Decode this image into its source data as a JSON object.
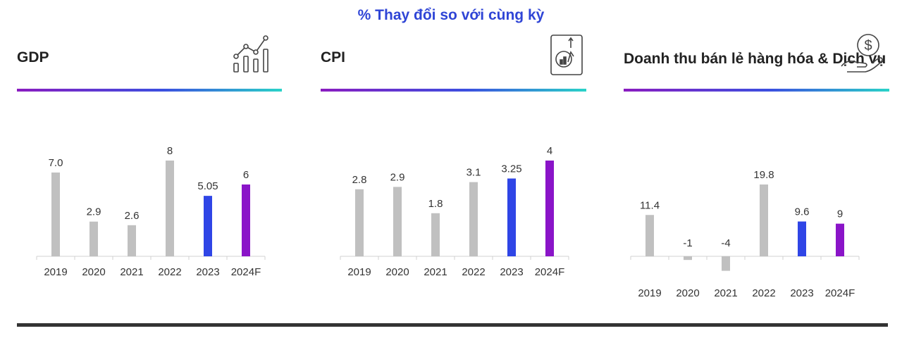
{
  "header": {
    "title": "% Thay đổi so với cùng kỳ"
  },
  "colors": {
    "neutral_bar": "#c0c0c0",
    "highlight_2023": "#2f45e6",
    "highlight_2024": "#8a14c8",
    "title": "#2f45d6"
  },
  "panels": [
    {
      "title": "GDP",
      "icon": "growth-chart-icon"
    },
    {
      "title": "CPI",
      "icon": "document-chart-icon"
    },
    {
      "title": "Doanh thu bán lẻ hàng hóa & Dịch vụ",
      "icon": "money-hand-icon"
    }
  ],
  "chart_data": [
    {
      "type": "bar",
      "categories": [
        "2019",
        "2020",
        "2021",
        "2022",
        "2023",
        "2024F"
      ],
      "values": [
        7.0,
        2.9,
        2.6,
        8,
        5.05,
        6
      ],
      "labels": [
        "7.0",
        "2.9",
        "2.6",
        "8",
        "5.05",
        "6"
      ],
      "title": "GDP",
      "xlabel": "",
      "ylabel": "",
      "ylim": [
        0,
        8
      ],
      "grid": false,
      "legend": "none"
    },
    {
      "type": "bar",
      "categories": [
        "2019",
        "2020",
        "2021",
        "2022",
        "2023",
        "2024F"
      ],
      "values": [
        2.8,
        2.9,
        1.8,
        3.1,
        3.25,
        4
      ],
      "labels": [
        "2.8",
        "2.9",
        "1.8",
        "3.1",
        "3.25",
        "4"
      ],
      "title": "CPI",
      "xlabel": "",
      "ylabel": "",
      "ylim": [
        0,
        4
      ],
      "grid": false,
      "legend": "none"
    },
    {
      "type": "bar",
      "categories": [
        "2019",
        "2020",
        "2021",
        "2022",
        "2023",
        "2024F"
      ],
      "values": [
        11.4,
        -1,
        -4,
        19.8,
        9.6,
        9
      ],
      "labels": [
        "11.4",
        "-1",
        "-4",
        "19.8",
        "9.6",
        "9"
      ],
      "title": "Doanh thu bán lẻ hàng hóa & Dịch vụ",
      "xlabel": "",
      "ylabel": "",
      "ylim": [
        -4,
        19.8
      ],
      "grid": false,
      "legend": "none"
    }
  ]
}
